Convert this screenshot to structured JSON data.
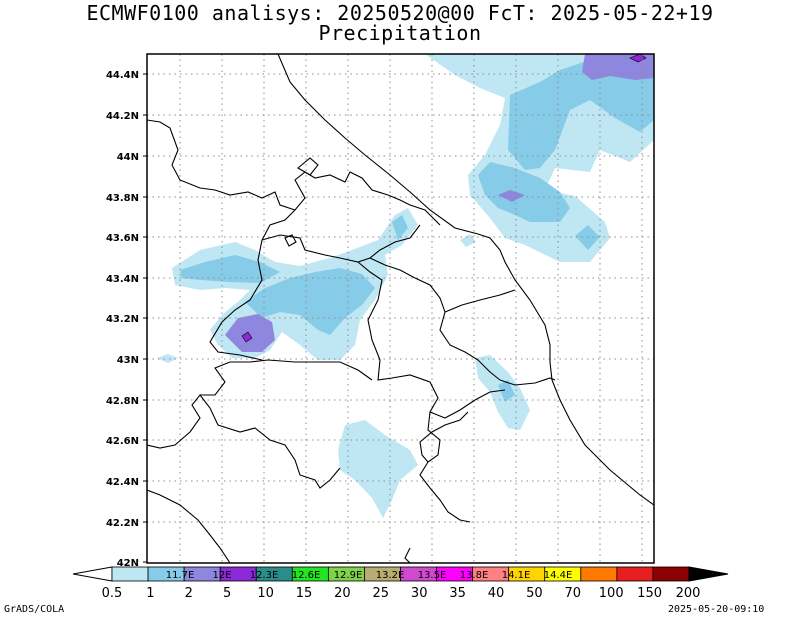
{
  "title": {
    "line1": "ECMWF0100 analisys: 20250520@00 FcT: 2025-05-22+19",
    "line2": "Precipitation"
  },
  "map": {
    "lat_labels": [
      "44.4N",
      "44.2N",
      "44N",
      "43.8N",
      "43.6N",
      "43.4N",
      "43.2N",
      "43N",
      "42.8N",
      "42.6N",
      "42.4N",
      "42.2N",
      "42N"
    ],
    "grid": "dotted",
    "colors": {
      "precip_1": "#bfe6f3",
      "precip_2": "#86cce8",
      "precip_5": "#8f86e0",
      "precip_10": "#8b2ad6",
      "coastline": "#000000",
      "gridline": "#8c8c8c"
    }
  },
  "colorbar": {
    "labels": [
      "0.5",
      "1",
      "2",
      "5",
      "10",
      "15",
      "20",
      "25",
      "30",
      "35",
      "40",
      "50",
      "70",
      "100",
      "150",
      "200"
    ],
    "inner_labels": [
      "11.7E",
      "12E",
      "12.3E",
      "12.6E",
      "12.9E",
      "13.2E",
      "13.5E",
      "13.8E",
      "14.1E",
      "14.4E"
    ],
    "colors": [
      "#bfe6f3",
      "#86cce8",
      "#8f86e0",
      "#8b2ad6",
      "#2b8c8c",
      "#22e622",
      "#7fd24a",
      "#b8ad70",
      "#d04ad0",
      "#ff00ff",
      "#ff8080",
      "#ffd400",
      "#ffff00",
      "#ff7800",
      "#e61e1e",
      "#8b0000"
    ],
    "arrow_left_color": "#ffffff",
    "arrow_right_color": "#000000"
  },
  "footer": {
    "left": "GrADS/COLA",
    "right": "2025-05-20-09:10"
  }
}
